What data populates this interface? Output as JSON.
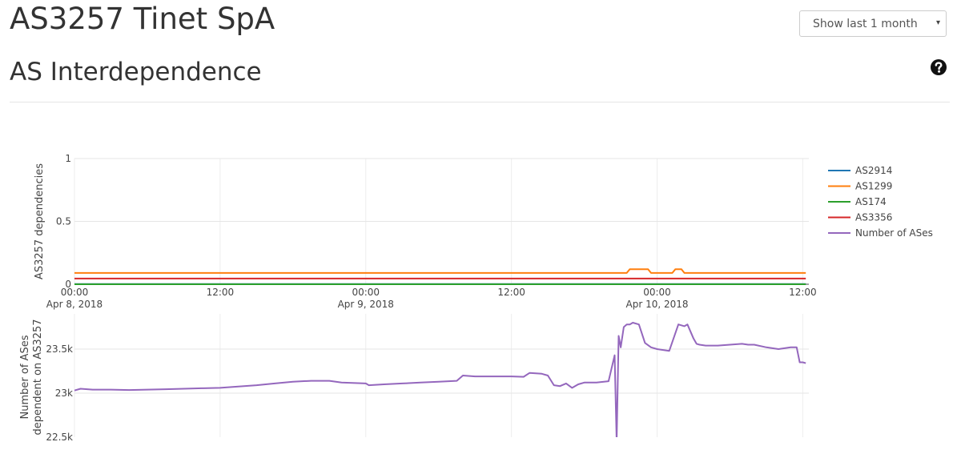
{
  "page": {
    "title": "AS3257 Tinet SpA",
    "range_select": {
      "label": "Show last 1 month",
      "caret": "▾"
    },
    "section_title": "AS Interdependence",
    "help_icon": "question-circle-icon"
  },
  "chart_data": [
    {
      "type": "line",
      "title": "",
      "ylabel": "AS3257 dependencies",
      "xlim": [
        "2018-04-08 00:00",
        "2018-04-10 12:30"
      ],
      "ylim": [
        0,
        1
      ],
      "yticks": [
        0,
        0.5,
        1
      ],
      "ytick_labels": [
        "0",
        "0.5",
        "1"
      ],
      "xticks": [
        "2018-04-08 00:00",
        "2018-04-08 12:00",
        "2018-04-09 00:00",
        "2018-04-09 12:00",
        "2018-04-10 00:00",
        "2018-04-10 12:00"
      ],
      "xtick_labels": [
        [
          "00:00",
          "Apr 8, 2018"
        ],
        [
          "12:00"
        ],
        [
          "00:00",
          "Apr 9, 2018"
        ],
        [
          "12:00"
        ],
        [
          "00:00",
          "Apr 10, 2018"
        ],
        [
          "12:00"
        ]
      ],
      "grid": true,
      "legend": "right",
      "series": [
        {
          "name": "AS2914",
          "color": "#1f77b4",
          "x": [
            "2018-04-08 00:00",
            "2018-04-10 12:15"
          ],
          "y": [
            0.002,
            0.002
          ]
        },
        {
          "name": "AS1299",
          "color": "#ff7f0e",
          "x": [
            "2018-04-08 00:00",
            "2018-04-09 21:30",
            "2018-04-09 21:45",
            "2018-04-09 23:15",
            "2018-04-09 23:30",
            "2018-04-10 01:15",
            "2018-04-10 01:30",
            "2018-04-10 02:00",
            "2018-04-10 02:15",
            "2018-04-10 12:15"
          ],
          "y": [
            0.09,
            0.09,
            0.12,
            0.12,
            0.09,
            0.09,
            0.12,
            0.12,
            0.09,
            0.09
          ]
        },
        {
          "name": "AS174",
          "color": "#2ca02c",
          "x": [
            "2018-04-08 00:00",
            "2018-04-10 12:15"
          ],
          "y": [
            0.0,
            0.0
          ]
        },
        {
          "name": "AS3356",
          "color": "#d62728",
          "x": [
            "2018-04-08 00:00",
            "2018-04-10 12:15"
          ],
          "y": [
            0.045,
            0.045
          ]
        }
      ]
    },
    {
      "type": "line",
      "title": "",
      "ylabel": [
        "Number of ASes",
        "dependent on AS3257"
      ],
      "xlim": [
        "2018-04-08 00:00",
        "2018-04-10 12:30"
      ],
      "ylim": [
        22500,
        23900
      ],
      "yticks": [
        22500,
        23000,
        23500
      ],
      "ytick_labels": [
        "22.5k",
        "23k",
        "23.5k"
      ],
      "grid": true,
      "series": [
        {
          "name": "Number of ASes",
          "color": "#9467bd",
          "x": [
            "2018-04-08 00:00",
            "2018-04-08 00:30",
            "2018-04-08 01:30",
            "2018-04-08 03:00",
            "2018-04-08 04:30",
            "2018-04-08 06:00",
            "2018-04-08 07:30",
            "2018-04-08 09:00",
            "2018-04-08 10:30",
            "2018-04-08 12:00",
            "2018-04-08 13:30",
            "2018-04-08 15:00",
            "2018-04-08 16:30",
            "2018-04-08 18:00",
            "2018-04-08 19:30",
            "2018-04-08 21:00",
            "2018-04-08 22:00",
            "2018-04-09 00:00",
            "2018-04-09 00:15",
            "2018-04-09 01:30",
            "2018-04-09 03:00",
            "2018-04-09 04:30",
            "2018-04-09 06:00",
            "2018-04-09 07:30",
            "2018-04-09 08:00",
            "2018-04-09 09:00",
            "2018-04-09 10:00",
            "2018-04-09 11:00",
            "2018-04-09 12:00",
            "2018-04-09 13:00",
            "2018-04-09 13:30",
            "2018-04-09 14:30",
            "2018-04-09 15:00",
            "2018-04-09 15:30",
            "2018-04-09 16:00",
            "2018-04-09 16:30",
            "2018-04-09 17:00",
            "2018-04-09 17:30",
            "2018-04-09 18:00",
            "2018-04-09 19:00",
            "2018-04-09 20:00",
            "2018-04-09 20:30",
            "2018-04-09 20:40",
            "2018-04-09 20:50",
            "2018-04-09 21:00",
            "2018-04-09 21:15",
            "2018-04-09 21:30",
            "2018-04-09 21:45",
            "2018-04-09 22:00",
            "2018-04-09 22:30",
            "2018-04-09 23:00",
            "2018-04-09 23:30",
            "2018-04-10 00:00",
            "2018-04-10 01:00",
            "2018-04-10 01:30",
            "2018-04-10 01:45",
            "2018-04-10 02:15",
            "2018-04-10 02:30",
            "2018-04-10 03:00",
            "2018-04-10 03:15",
            "2018-04-10 03:30",
            "2018-04-10 04:00",
            "2018-04-10 05:00",
            "2018-04-10 06:00",
            "2018-04-10 07:00",
            "2018-04-10 07:30",
            "2018-04-10 08:00",
            "2018-04-10 09:00",
            "2018-04-10 10:00",
            "2018-04-10 11:00",
            "2018-04-10 11:30",
            "2018-04-10 11:45",
            "2018-04-10 12:00",
            "2018-04-10 12:15"
          ],
          "y": [
            23030,
            23050,
            23040,
            23040,
            23035,
            23040,
            23045,
            23050,
            23055,
            23060,
            23075,
            23090,
            23110,
            23130,
            23140,
            23140,
            23120,
            23110,
            23090,
            23100,
            23110,
            23120,
            23130,
            23140,
            23200,
            23190,
            23190,
            23190,
            23190,
            23185,
            23230,
            23220,
            23200,
            23090,
            23080,
            23110,
            23060,
            23100,
            23120,
            23120,
            23135,
            23430,
            22450,
            23650,
            23520,
            23750,
            23780,
            23780,
            23800,
            23780,
            23570,
            23520,
            23500,
            23480,
            23680,
            23780,
            23760,
            23780,
            23620,
            23560,
            23550,
            23540,
            23540,
            23550,
            23560,
            23550,
            23550,
            23520,
            23500,
            23520,
            23520,
            23350,
            23350,
            23340
          ]
        }
      ]
    }
  ]
}
